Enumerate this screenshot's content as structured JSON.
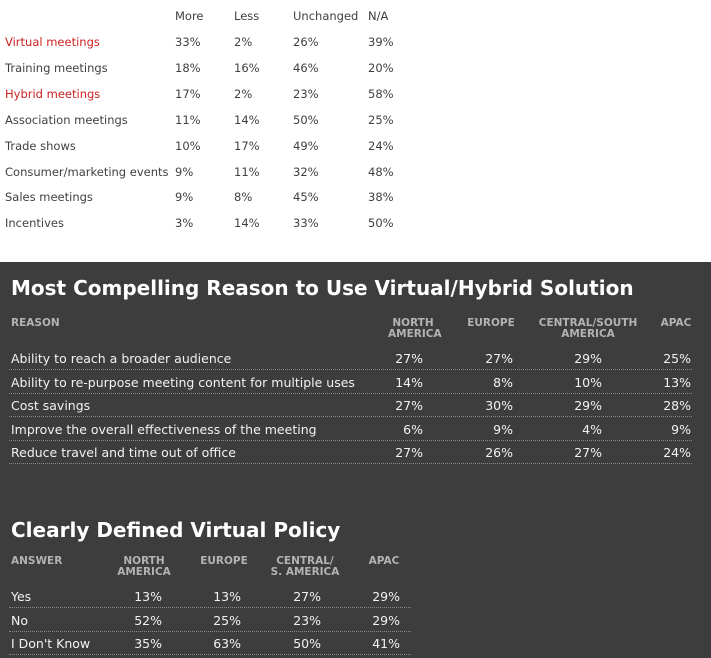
{
  "top_table": {
    "headers": [
      "More",
      "Less",
      "Unchanged",
      "N/A"
    ],
    "rows": [
      {
        "label": "Virtual meetings",
        "values": [
          "33%",
          "2%",
          "26%",
          "39%"
        ],
        "highlight": true
      },
      {
        "label": "Training meetings",
        "values": [
          "18%",
          "16%",
          "46%",
          "20%"
        ],
        "highlight": false
      },
      {
        "label": "Hybrid meetings",
        "values": [
          "17%",
          "2%",
          "23%",
          "58%"
        ],
        "highlight": true
      },
      {
        "label": "Association meetings",
        "values": [
          "11%",
          "14%",
          "50%",
          "25%"
        ],
        "highlight": false
      },
      {
        "label": "Trade shows",
        "values": [
          "10%",
          "17%",
          "49%",
          "24%"
        ],
        "highlight": false
      },
      {
        "label": "Consumer/marketing events",
        "values": [
          "9%",
          "11%",
          "32%",
          "48%"
        ],
        "highlight": false
      },
      {
        "label": "Sales meetings",
        "values": [
          "9%",
          "8%",
          "45%",
          "38%"
        ],
        "highlight": false
      },
      {
        "label": "Incentives",
        "values": [
          "3%",
          "14%",
          "33%",
          "50%"
        ],
        "highlight": false
      }
    ]
  },
  "reason_table": {
    "title": "Most Compelling Reason to Use Virtual/Hybrid Solution",
    "first_header": "REASON",
    "headers": [
      [
        "NORTH",
        "AMERICA"
      ],
      [
        "EUROPE"
      ],
      [
        "CENTRAL/SOUTH",
        "AMERICA"
      ],
      [
        "APAC"
      ]
    ],
    "rows": [
      {
        "label": "Ability to reach a broader audience",
        "values": [
          "27%",
          "27%",
          "29%",
          "25%"
        ]
      },
      {
        "label": "Ability to re-purpose meeting content for multiple uses",
        "values": [
          "14%",
          "8%",
          "10%",
          "13%"
        ]
      },
      {
        "label": "Cost savings",
        "values": [
          "27%",
          "30%",
          "29%",
          "28%"
        ]
      },
      {
        "label": "Improve the overall effectiveness of the meeting",
        "values": [
          "6%",
          "9%",
          "4%",
          "9%"
        ]
      },
      {
        "label": "Reduce travel and time out of office",
        "values": [
          "27%",
          "26%",
          "27%",
          "24%"
        ]
      }
    ]
  },
  "policy_table": {
    "title": "Clearly Defined Virtual Policy",
    "first_header": "ANSWER",
    "headers": [
      [
        "NORTH",
        "AMERICA"
      ],
      [
        "EUROPE"
      ],
      [
        "CENTRAL/",
        "S. AMERICA"
      ],
      [
        "APAC"
      ]
    ],
    "rows": [
      {
        "label": "Yes",
        "values": [
          "13%",
          "13%",
          "27%",
          "29%"
        ]
      },
      {
        "label": "No",
        "values": [
          "52%",
          "25%",
          "23%",
          "29%"
        ]
      },
      {
        "label": "I Don't Know",
        "values": [
          "35%",
          "63%",
          "50%",
          "41%"
        ]
      }
    ]
  },
  "colors": {
    "highlight_text": "#cc2222",
    "dark_background": "#3d3d3d",
    "header_text": "#b3b3b3"
  }
}
